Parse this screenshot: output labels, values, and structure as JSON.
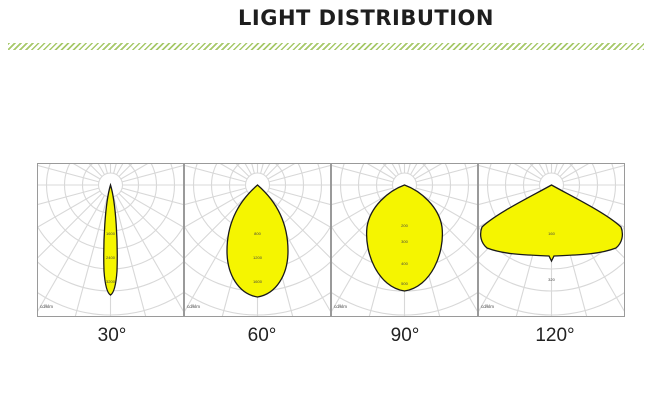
{
  "title": "LIGHT DISTRIBUTION",
  "colors": {
    "beam_fill": "#f5f500",
    "beam_stroke": "#1a1a1a",
    "grid": "#d8d8d8",
    "accent": "#a7c96a"
  },
  "panels": [
    {
      "angle_label": "30°",
      "unit_label": "cd/klm",
      "ring_labels": [
        "1600",
        "2400",
        "3200"
      ]
    },
    {
      "angle_label": "60°",
      "unit_label": "cd/klm",
      "ring_labels": [
        "800",
        "1200",
        "1600"
      ]
    },
    {
      "angle_label": "90°",
      "unit_label": "cd/klm",
      "ring_labels": [
        "200",
        "300",
        "400",
        "500"
      ]
    },
    {
      "angle_label": "120°",
      "unit_label": "cd/klm",
      "ring_labels": [
        "160",
        "320"
      ]
    }
  ]
}
